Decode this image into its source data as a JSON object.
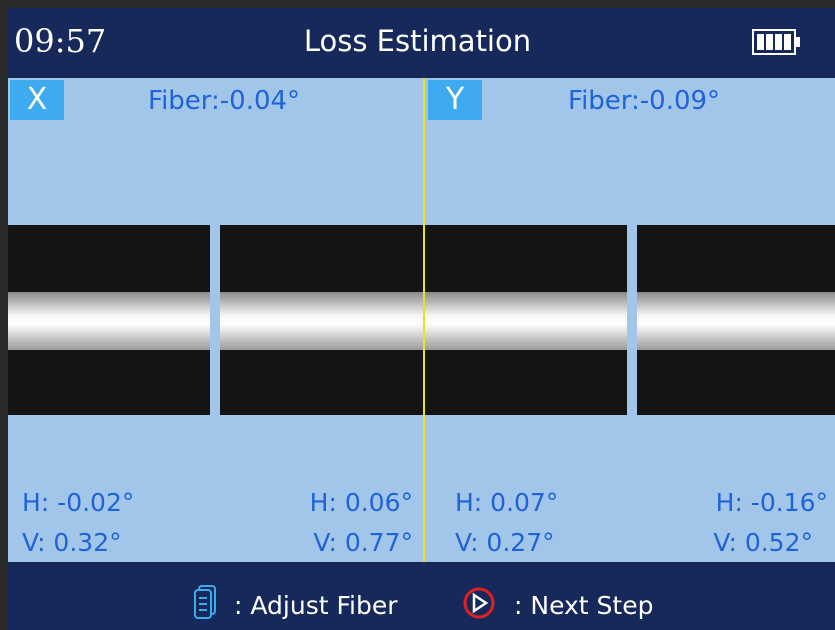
{
  "header": {
    "time": "09:57",
    "title": "Loss Estimation"
  },
  "panels": [
    {
      "label": "X",
      "fiber": "Fiber:-0.04°",
      "left": {
        "h": "H: -0.02°",
        "v": "V: 0.32°"
      },
      "right": {
        "h": "H: 0.06°",
        "v": "V: 0.77°"
      }
    },
    {
      "label": "Y",
      "fiber": "Fiber:-0.09°",
      "left": {
        "h": "H: 0.07°",
        "v": "V: 0.27°"
      },
      "right": {
        "h": "H: -0.16°",
        "v": "V: 0.52°"
      }
    }
  ],
  "footer": {
    "adjust": ": Adjust Fiber",
    "next": ": Next Step"
  }
}
